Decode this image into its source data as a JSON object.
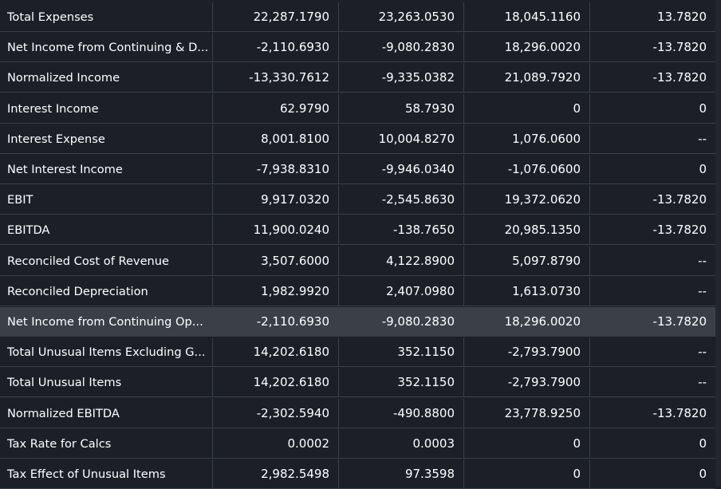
{
  "rows": [
    {
      "label": "Total Expenses",
      "v1": "22,287.1790",
      "v2": "23,263.0530",
      "v3": "18,045.1160",
      "v4": "13.7820",
      "highlight": false
    },
    {
      "label": "Net Income from Continuing & D...",
      "v1": "-2,110.6930",
      "v2": "-9,080.2830",
      "v3": "18,296.0020",
      "v4": "-13.7820",
      "highlight": false
    },
    {
      "label": "Normalized Income",
      "v1": "-13,330.7612",
      "v2": "-9,335.0382",
      "v3": "21,089.7920",
      "v4": "-13.7820",
      "highlight": false
    },
    {
      "label": "Interest Income",
      "v1": "62.9790",
      "v2": "58.7930",
      "v3": "0",
      "v4": "0",
      "highlight": false
    },
    {
      "label": "Interest Expense",
      "v1": "8,001.8100",
      "v2": "10,004.8270",
      "v3": "1,076.0600",
      "v4": "--",
      "highlight": false
    },
    {
      "label": "Net Interest Income",
      "v1": "-7,938.8310",
      "v2": "-9,946.0340",
      "v3": "-1,076.0600",
      "v4": "0",
      "highlight": false
    },
    {
      "label": "EBIT",
      "v1": "9,917.0320",
      "v2": "-2,545.8630",
      "v3": "19,372.0620",
      "v4": "-13.7820",
      "highlight": false
    },
    {
      "label": "EBITDA",
      "v1": "11,900.0240",
      "v2": "-138.7650",
      "v3": "20,985.1350",
      "v4": "-13.7820",
      "highlight": false
    },
    {
      "label": "Reconciled Cost of Revenue",
      "v1": "3,507.6000",
      "v2": "4,122.8900",
      "v3": "5,097.8790",
      "v4": "--",
      "highlight": false
    },
    {
      "label": "Reconciled Depreciation",
      "v1": "1,982.9920",
      "v2": "2,407.0980",
      "v3": "1,613.0730",
      "v4": "--",
      "highlight": false
    },
    {
      "label": "Net Income from Continuing Op...",
      "v1": "-2,110.6930",
      "v2": "-9,080.2830",
      "v3": "18,296.0020",
      "v4": "-13.7820",
      "highlight": true
    },
    {
      "label": "Total Unusual Items Excluding G...",
      "v1": "14,202.6180",
      "v2": "352.1150",
      "v3": "-2,793.7900",
      "v4": "--",
      "highlight": false
    },
    {
      "label": "Total Unusual Items",
      "v1": "14,202.6180",
      "v2": "352.1150",
      "v3": "-2,793.7900",
      "v4": "--",
      "highlight": false
    },
    {
      "label": "Normalized EBITDA",
      "v1": "-2,302.5940",
      "v2": "-490.8800",
      "v3": "23,778.9250",
      "v4": "-13.7820",
      "highlight": false
    },
    {
      "label": "Tax Rate for Calcs",
      "v1": "0.0002",
      "v2": "0.0003",
      "v3": "0",
      "v4": "0",
      "highlight": false
    },
    {
      "label": "Tax Effect of Unusual Items",
      "v1": "2,982.5498",
      "v2": "97.3598",
      "v3": "0",
      "v4": "0",
      "highlight": false
    }
  ]
}
